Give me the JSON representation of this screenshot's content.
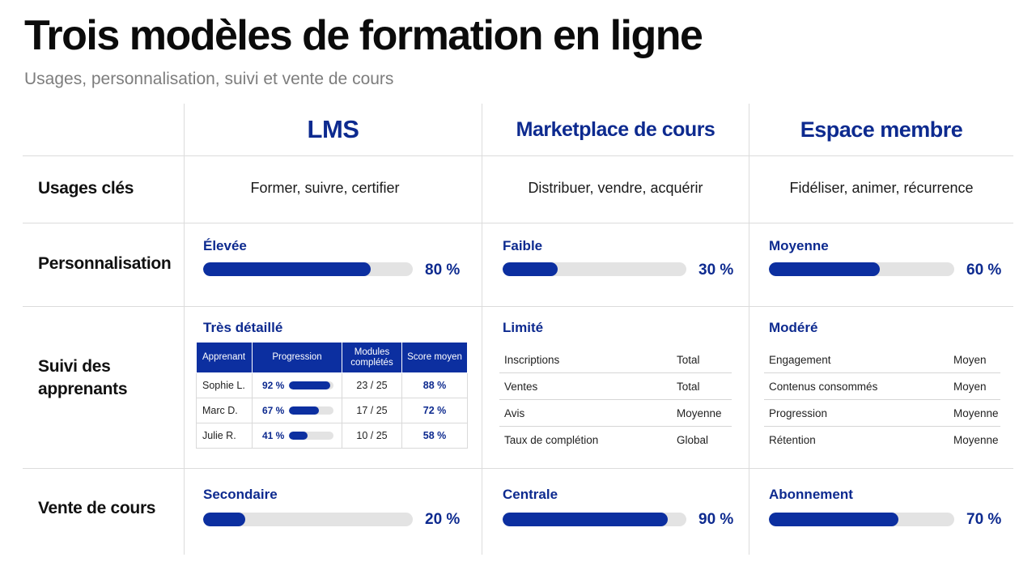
{
  "title": "Trois modèles de formation en ligne",
  "subtitle": "Usages, personnalisation, suivi et vente de cours",
  "columns": [
    "LMS",
    "Marketplace de cours",
    "Espace membre"
  ],
  "rows": {
    "usages": "Usages clés",
    "personnalisation": "Personnalisation",
    "suivi_line1": "Suivi des",
    "suivi_line2": "apprenants",
    "vente": "Vente de cours"
  },
  "usages": [
    "Former, suivre, certifier",
    "Distribuer, vendre, acquérir",
    "Fidéliser, animer, récurrence"
  ],
  "personnalisation": [
    {
      "label": "Élevée",
      "value": 80,
      "pct": "80 %"
    },
    {
      "label": "Faible",
      "value": 30,
      "pct": "30 %"
    },
    {
      "label": "Moyenne",
      "value": 60,
      "pct": "60 %"
    }
  ],
  "suivi": {
    "lms": {
      "label": "Très détaillé",
      "headers": [
        "Apprenant",
        "Progression",
        "Modules complétés",
        "Score moyen"
      ],
      "rows": [
        {
          "name": "Sophie L.",
          "progress": 92,
          "progress_label": "92 %",
          "modules": "23 / 25",
          "score": "88 %"
        },
        {
          "name": "Marc D.",
          "progress": 67,
          "progress_label": "67 %",
          "modules": "17 / 25",
          "score": "72 %"
        },
        {
          "name": "Julie R.",
          "progress": 41,
          "progress_label": "41 %",
          "modules": "10 / 25",
          "score": "58 %"
        }
      ]
    },
    "marketplace": {
      "label": "Limité",
      "items": [
        {
          "metric": "Inscriptions",
          "value": "Total"
        },
        {
          "metric": "Ventes",
          "value": "Total"
        },
        {
          "metric": "Avis",
          "value": "Moyenne"
        },
        {
          "metric": "Taux de complétion",
          "value": "Global"
        }
      ]
    },
    "espace": {
      "label": "Modéré",
      "items": [
        {
          "metric": "Engagement",
          "value": "Moyen"
        },
        {
          "metric": "Contenus consommés",
          "value": "Moyen"
        },
        {
          "metric": "Progression",
          "value": "Moyenne"
        },
        {
          "metric": "Rétention",
          "value": "Moyenne"
        }
      ]
    }
  },
  "vente": [
    {
      "label": "Secondaire",
      "value": 20,
      "pct": "20 %"
    },
    {
      "label": "Centrale",
      "value": 90,
      "pct": "90 %"
    },
    {
      "label": "Abonnement",
      "value": 70,
      "pct": "70 %"
    }
  ],
  "colors": {
    "accent": "#0c2fa0",
    "heading": "#0d2a8f",
    "track": "#e3e3e3",
    "grid": "#dcdcdc"
  }
}
